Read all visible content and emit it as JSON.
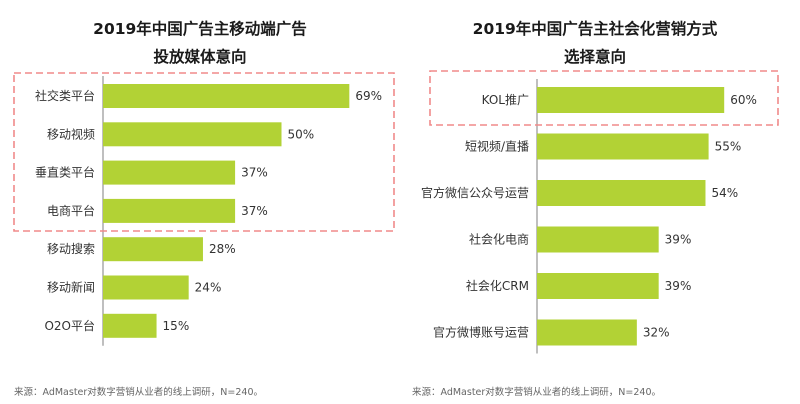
{
  "colors": {
    "bar": "#B2D235",
    "highlight": "#F08A8A",
    "axis": "#7F7F7F"
  },
  "chart_data": [
    {
      "type": "bar",
      "orientation": "horizontal",
      "title_lines": [
        "2019年中国广告主移动端广告",
        "投放媒体意向"
      ],
      "categories": [
        "社交类平台",
        "移动视频",
        "垂直类平台",
        "电商平台",
        "移动搜索",
        "移动新闻",
        "O2O平台"
      ],
      "values": [
        69,
        50,
        37,
        37,
        28,
        24,
        15
      ],
      "value_labels": [
        "69%",
        "50%",
        "37%",
        "37%",
        "28%",
        "24%",
        "15%"
      ],
      "xlim": [
        0,
        100
      ],
      "highlighted": [
        0,
        1,
        2,
        3
      ],
      "source": "来源：AdMaster对数字营销从业者的线上调研，N=240。"
    },
    {
      "type": "bar",
      "orientation": "horizontal",
      "title_lines": [
        "2019年中国广告主社会化营销方式",
        "选择意向"
      ],
      "categories": [
        "KOL推广",
        "短视频/直播",
        "官方微信公众号运营",
        "社会化电商",
        "社会化CRM",
        "官方微博账号运营"
      ],
      "values": [
        60,
        55,
        54,
        39,
        39,
        32
      ],
      "value_labels": [
        "60%",
        "55%",
        "54%",
        "39%",
        "39%",
        "32%"
      ],
      "xlim": [
        0,
        100
      ],
      "highlighted": [
        0
      ],
      "source": "来源：AdMaster对数字营销从业者的线上调研，N=240。"
    }
  ]
}
